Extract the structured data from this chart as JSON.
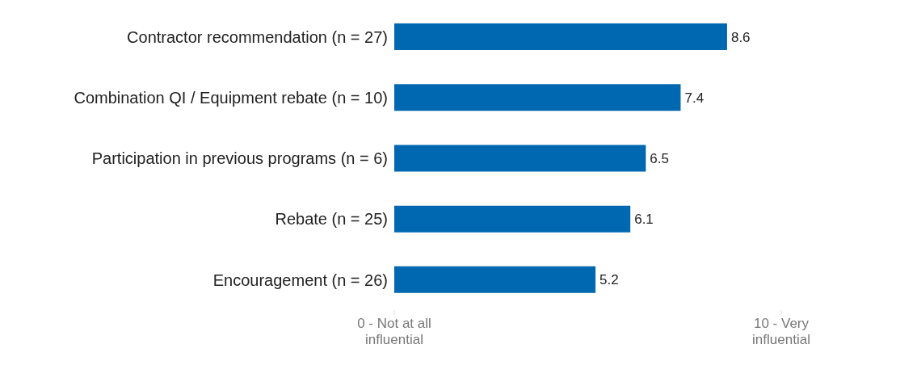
{
  "chart_data": {
    "type": "bar",
    "orientation": "horizontal",
    "categories": [
      "Contractor recommendation (n = 27)",
      "Combination QI / Equipment rebate (n = 10)",
      "Participation in previous programs (n = 6)",
      "Rebate (n = 25)",
      "Encouragement (n = 26)"
    ],
    "values": [
      8.6,
      7.4,
      6.5,
      6.1,
      5.2
    ],
    "color": "#0068b0",
    "xlim": [
      0,
      10
    ],
    "xticks": [
      {
        "value": 0,
        "label": "0 - Not at all influential"
      },
      {
        "value": 10,
        "label": "10 - Very influential"
      }
    ],
    "data_labels": true,
    "grid": false,
    "legend": false
  }
}
